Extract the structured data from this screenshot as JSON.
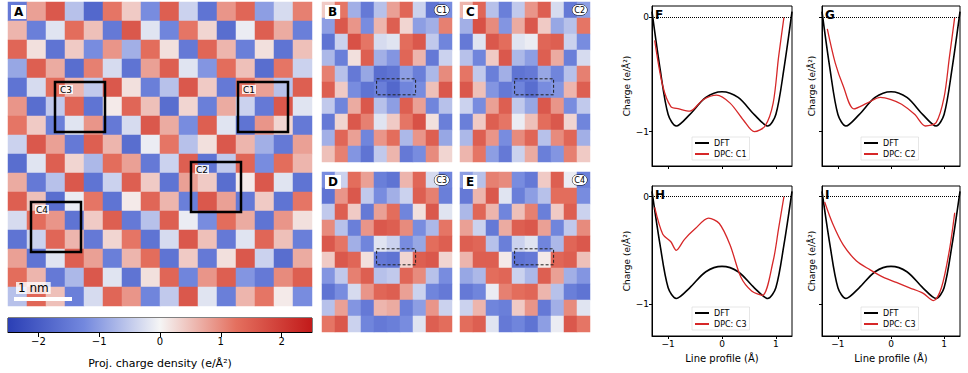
{
  "chart_data": [
    {
      "type": "heatmap",
      "panel": "A",
      "boxes": [
        "C3",
        "C1",
        "C2",
        "C4"
      ],
      "scale_bar": "1 nm",
      "colorbar": {
        "label": "Proj. charge density (e/Å²)",
        "range": [
          -2.5,
          2.5
        ],
        "ticks": [
          {
            "value": -2,
            "label": "−2"
          },
          {
            "value": -1,
            "label": "−1"
          },
          0,
          1,
          2
        ]
      },
      "cells": [
        [
          -1.5,
          0.8,
          1.6,
          -0.6,
          -1.8,
          1.2,
          0.4,
          -1.2,
          1.5,
          -0.4,
          -1.6,
          0.9,
          1.4,
          -1.0,
          -0.3,
          1.1
        ],
        [
          0.6,
          -1.4,
          -0.2,
          1.3,
          0.5,
          -1.5,
          1.6,
          -0.2,
          -1.3,
          1.2,
          0.3,
          -1.7,
          -0.1,
          1.5,
          0.7,
          -1.4
        ],
        [
          1.4,
          0.2,
          -1.6,
          0.4,
          -1.2,
          0.9,
          -0.8,
          1.3,
          0.2,
          -1.5,
          1.4,
          0.6,
          -1.4,
          0.2,
          -1.6,
          0.5
        ],
        [
          -0.9,
          1.5,
          0.7,
          -1.7,
          1.1,
          -0.3,
          -1.6,
          0.8,
          1.5,
          -0.2,
          -1.1,
          1.3,
          0.5,
          -1.7,
          1.2,
          -0.4
        ],
        [
          -1.6,
          -0.3,
          1.3,
          0.6,
          -0.5,
          1.6,
          0.2,
          -1.4,
          -0.6,
          1.6,
          0.4,
          -1.5,
          1.2,
          0.8,
          -0.6,
          1.5
        ],
        [
          0.9,
          -1.7,
          -0.5,
          1.4,
          -1.6,
          0.1,
          1.4,
          0.5,
          -1.7,
          0.3,
          -1.4,
          0.7,
          -0.4,
          -1.5,
          1.6,
          -0.2
        ],
        [
          1.2,
          0.4,
          -1.4,
          -0.2,
          0.9,
          -1.5,
          -0.3,
          1.6,
          0.7,
          -1.2,
          1.5,
          -0.2,
          -1.6,
          0.9,
          0.3,
          -1.5
        ],
        [
          -0.4,
          1.6,
          0.8,
          -1.5,
          1.5,
          0.6,
          -1.7,
          -0.1,
          1.2,
          -0.6,
          0.2,
          1.6,
          0.6,
          -0.8,
          -1.5,
          0.8
        ],
        [
          -1.7,
          -0.2,
          1.5,
          0.3,
          -0.7,
          1.3,
          0.8,
          -1.5,
          -0.4,
          1.5,
          -1.6,
          -0.5,
          1.4,
          -1.2,
          1.3,
          0.6
        ],
        [
          0.7,
          -1.5,
          -0.6,
          1.6,
          -1.6,
          -0.4,
          1.5,
          0.4,
          -1.6,
          0.8,
          0.4,
          -1.7,
          0.1,
          1.6,
          -0.2,
          -1.6
        ],
        [
          1.5,
          0.5,
          -1.7,
          -0.1,
          1.2,
          -1.6,
          0.1,
          1.4,
          0.6,
          -1.4,
          1.6,
          0.8,
          -1.5,
          0.4,
          -1.6,
          1.2
        ],
        [
          -0.3,
          1.3,
          0.9,
          -1.6,
          0.4,
          1.5,
          -1.5,
          -0.6,
          1.5,
          -0.1,
          -1.2,
          1.3,
          0.7,
          -1.6,
          0.9,
          0.2
        ],
        [
          -1.6,
          -0.4,
          1.4,
          0.6,
          -1.5,
          0.3,
          1.2,
          -1.6,
          -0.3,
          1.6,
          0.5,
          -1.5,
          -0.2,
          1.4,
          0.5,
          -1.4
        ],
        [
          0.8,
          -1.6,
          -0.2,
          1.5,
          0.8,
          -1.4,
          0.6,
          1.3,
          -1.6,
          0.4,
          -1.5,
          0.2,
          1.6,
          -0.4,
          -1.7,
          0.7
        ],
        [
          1.3,
          0.6,
          -1.5,
          -0.7,
          1.6,
          -0.2,
          -1.6,
          0.2,
          1.4,
          -1.3,
          0.9,
          1.5,
          -1.1,
          -1.5,
          1.0,
          1.5
        ],
        [
          -0.6,
          1.4,
          0.5,
          -1.4,
          -0.3,
          1.4,
          0.9,
          -1.3,
          -0.5,
          1.6,
          -0.2,
          -1.4,
          0.6,
          1.2,
          0.1,
          -1.2
        ]
      ]
    },
    {
      "type": "heatmap",
      "panel": "B",
      "tag": "C1",
      "cells": [
        [
          0.4,
          1.2,
          -0.8,
          -1.5,
          -0.6,
          0.8,
          1.4,
          -0.4,
          -1.6,
          -1.2
        ],
        [
          -1.0,
          1.6,
          0.9,
          -1.2,
          0.6,
          1.5,
          0.3,
          -1.0,
          -0.8,
          1.1
        ],
        [
          -1.6,
          -0.4,
          1.7,
          1.2,
          -0.3,
          -0.2,
          1.3,
          1.6,
          -0.5,
          -1.3
        ],
        [
          -0.7,
          -1.4,
          0.2,
          1.5,
          -0.8,
          -1.1,
          1.4,
          0.6,
          -1.5,
          -0.4
        ],
        [
          1.1,
          -0.6,
          -1.5,
          -0.9,
          -1.7,
          -1.6,
          -1.0,
          -1.4,
          -0.7,
          1.0
        ],
        [
          1.5,
          0.4,
          -1.2,
          -1.6,
          -1.4,
          -1.8,
          -1.3,
          -1.2,
          0.5,
          1.6
        ],
        [
          -0.5,
          -1.3,
          0.7,
          1.6,
          -0.6,
          -1.0,
          1.5,
          0.8,
          -1.3,
          -0.6
        ],
        [
          -1.5,
          0.3,
          1.6,
          1.1,
          -0.2,
          0.4,
          1.2,
          1.7,
          0.2,
          -1.4
        ],
        [
          -0.8,
          1.4,
          0.8,
          -1.3,
          0.9,
          1.3,
          -0.7,
          0.9,
          1.5,
          -0.9
        ],
        [
          0.5,
          1.1,
          -1.1,
          -1.6,
          -0.5,
          0.6,
          -1.5,
          -1.2,
          1.0,
          0.3
        ]
      ]
    },
    {
      "type": "heatmap",
      "panel": "C",
      "tag": "C2",
      "cells": [
        [
          0.6,
          1.4,
          -0.6,
          -1.4,
          -0.5,
          0.9,
          1.5,
          -0.3,
          -1.5,
          -1.0
        ],
        [
          -0.8,
          1.7,
          1.0,
          -1.1,
          0.7,
          1.6,
          0.4,
          -0.9,
          -0.6,
          1.2
        ],
        [
          -1.5,
          -0.2,
          1.6,
          1.3,
          -0.2,
          -0.1,
          1.4,
          1.5,
          -0.4,
          -1.2
        ],
        [
          -0.6,
          -1.3,
          0.4,
          1.6,
          -0.7,
          -1.0,
          1.5,
          0.7,
          -1.4,
          -0.3
        ],
        [
          1.2,
          -0.5,
          -1.4,
          -0.8,
          -1.6,
          -1.5,
          -0.9,
          -1.3,
          -0.6,
          1.1
        ],
        [
          1.6,
          0.5,
          -1.1,
          -1.5,
          -1.3,
          -1.7,
          -1.2,
          -1.1,
          0.6,
          1.5
        ],
        [
          -0.4,
          -1.2,
          0.8,
          1.5,
          -0.5,
          -0.9,
          1.6,
          0.9,
          -1.2,
          -0.5
        ],
        [
          -1.4,
          0.4,
          1.5,
          1.2,
          -0.1,
          0.5,
          1.3,
          1.6,
          0.3,
          -1.3
        ],
        [
          -0.7,
          1.5,
          0.9,
          -1.2,
          1.0,
          1.4,
          -0.6,
          1.0,
          1.4,
          -0.8
        ],
        [
          0.6,
          1.2,
          -1.0,
          -1.5,
          -0.4,
          0.7,
          -1.4,
          -1.1,
          1.1,
          0.4
        ]
      ]
    },
    {
      "type": "heatmap",
      "panel": "D",
      "tag": "C3",
      "cells": [
        [
          -1.2,
          -0.4,
          1.3,
          0.8,
          -1.4,
          -1.6,
          0.6,
          1.4,
          -0.3,
          -1.3
        ],
        [
          -1.6,
          0.9,
          1.6,
          -0.5,
          -1.2,
          -0.8,
          -0.4,
          1.5,
          1.1,
          -1.4
        ],
        [
          -0.5,
          1.5,
          0.4,
          -1.5,
          0.8,
          1.3,
          -1.3,
          0.2,
          1.6,
          -0.2
        ],
        [
          1.0,
          -0.6,
          -1.4,
          0.9,
          1.6,
          1.5,
          1.0,
          -1.2,
          -0.7,
          1.2
        ],
        [
          1.6,
          1.2,
          -0.8,
          -1.3,
          -0.2,
          -0.4,
          -1.2,
          -0.9,
          1.3,
          1.5
        ],
        [
          0.4,
          1.6,
          1.4,
          0.2,
          -1.5,
          -1.6,
          0.3,
          1.5,
          1.6,
          0.3
        ],
        [
          -1.1,
          -0.5,
          1.1,
          1.5,
          -0.6,
          -0.5,
          1.4,
          1.0,
          -0.6,
          -1.2
        ],
        [
          -1.6,
          -1.2,
          -0.3,
          0.9,
          1.4,
          1.5,
          0.8,
          -0.4,
          -1.3,
          -1.5
        ],
        [
          -0.6,
          0.8,
          -1.1,
          -1.5,
          0.6,
          0.7,
          -1.4,
          -1.0,
          0.9,
          -0.4
        ],
        [
          1.2,
          1.6,
          -0.4,
          -1.3,
          -1.5,
          -1.4,
          -1.2,
          -0.2,
          1.5,
          1.3
        ]
      ]
    },
    {
      "type": "heatmap",
      "panel": "E",
      "tag": "C4",
      "cells": [
        [
          -1.0,
          -0.6,
          1.1,
          1.0,
          -1.2,
          -1.5,
          0.4,
          1.5,
          -0.1,
          -1.4
        ],
        [
          -1.5,
          0.6,
          1.6,
          -0.2,
          -1.4,
          -1.0,
          -0.6,
          1.3,
          1.3,
          -1.2
        ],
        [
          -0.7,
          1.4,
          0.6,
          -1.3,
          0.5,
          1.1,
          -1.4,
          0.4,
          1.5,
          -0.4
        ],
        [
          0.8,
          -0.4,
          -1.5,
          0.7,
          1.5,
          1.6,
          0.8,
          -1.3,
          -0.5,
          1.0
        ],
        [
          1.5,
          1.4,
          -0.6,
          -1.4,
          -0.4,
          -0.2,
          -1.3,
          -0.7,
          1.4,
          1.6
        ],
        [
          0.6,
          1.5,
          1.5,
          0.1,
          -1.6,
          -1.5,
          0.1,
          1.4,
          1.5,
          0.5
        ],
        [
          -0.9,
          -0.7,
          1.3,
          1.4,
          -0.4,
          -0.7,
          1.5,
          0.8,
          -0.8,
          -1.1
        ],
        [
          -1.5,
          -1.3,
          -0.1,
          1.1,
          1.3,
          1.4,
          0.6,
          -0.6,
          -1.4,
          -1.6
        ],
        [
          -0.4,
          0.6,
          -1.3,
          -1.4,
          0.4,
          0.9,
          -1.5,
          -0.8,
          1.0,
          -0.2
        ],
        [
          1.3,
          1.5,
          -0.2,
          -1.5,
          -1.3,
          -1.6,
          -1.0,
          -0.1,
          1.6,
          1.2
        ]
      ]
    },
    {
      "type": "line",
      "panel": "F",
      "ylabel": "Charge (e/Å²)",
      "xlim": [
        -1.3,
        1.3
      ],
      "xticks": [
        {
          "value": -1,
          "label": "−1"
        },
        0,
        1
      ],
      "ylim": [
        -1.3,
        0.1
      ],
      "yticks": [
        {
          "value": -1,
          "label": "−1"
        },
        0
      ],
      "hline": 0,
      "legend": "bottom",
      "tick_labels": "y",
      "series": [
        {
          "name": "DFT",
          "color": "#000000",
          "x": [
            -1.3,
            -1.15,
            -1.0,
            -0.85,
            -0.6,
            -0.3,
            0,
            0.3,
            0.6,
            0.85,
            1.0,
            1.15,
            1.3
          ],
          "values": [
            0.05,
            -0.45,
            -0.85,
            -0.95,
            -0.85,
            -0.7,
            -0.65,
            -0.7,
            -0.85,
            -0.95,
            -0.85,
            -0.45,
            0.05
          ]
        },
        {
          "name": "DPC: C1",
          "color": "#d62728",
          "x": [
            -1.25,
            -1.1,
            -0.95,
            -0.8,
            -0.6,
            -0.35,
            -0.1,
            0.15,
            0.4,
            0.6,
            0.8,
            0.95,
            1.05,
            1.15
          ],
          "values": [
            -0.2,
            -0.6,
            -0.78,
            -0.8,
            -0.82,
            -0.72,
            -0.68,
            -0.75,
            -0.9,
            -1.0,
            -0.95,
            -0.75,
            -0.35,
            0.0
          ]
        }
      ]
    },
    {
      "type": "line",
      "panel": "G",
      "ylabel": "Charge (e/Å²)",
      "xlim": [
        -1.3,
        1.3
      ],
      "xticks": [
        {
          "value": -1,
          "label": "−1"
        },
        0,
        1
      ],
      "ylim": [
        -1.3,
        0.1
      ],
      "yticks": [
        {
          "value": -1,
          "label": "−1"
        },
        0
      ],
      "hline": 0,
      "legend": "bottom",
      "tick_labels": false,
      "series": [
        {
          "name": "DFT",
          "color": "#000000",
          "x": [
            -1.3,
            -1.15,
            -1.0,
            -0.85,
            -0.6,
            -0.3,
            0,
            0.3,
            0.6,
            0.85,
            1.0,
            1.15,
            1.3
          ],
          "values": [
            0.05,
            -0.45,
            -0.85,
            -0.95,
            -0.85,
            -0.7,
            -0.65,
            -0.7,
            -0.85,
            -0.95,
            -0.85,
            -0.45,
            0.05
          ]
        },
        {
          "name": "DPC: C2",
          "color": "#d62728",
          "x": [
            -1.2,
            -1.05,
            -0.9,
            -0.7,
            -0.45,
            -0.2,
            0,
            0.2,
            0.45,
            0.65,
            0.85,
            1.0,
            1.1,
            1.2
          ],
          "values": [
            -0.1,
            -0.4,
            -0.6,
            -0.8,
            -0.75,
            -0.7,
            -0.72,
            -0.76,
            -0.85,
            -0.95,
            -0.92,
            -0.7,
            -0.35,
            0.0
          ]
        }
      ]
    },
    {
      "type": "line",
      "panel": "H",
      "xlabel": "Line profile (Å)",
      "ylabel": "Charge (e/Å²)",
      "xlim": [
        -1.3,
        1.3
      ],
      "xticks": [
        {
          "value": -1,
          "label": "−1"
        },
        0,
        1
      ],
      "ylim": [
        -1.3,
        0.1
      ],
      "yticks": [
        {
          "value": -1,
          "label": "−1"
        },
        0
      ],
      "hline": 0,
      "legend": "bottom",
      "tick_labels": true,
      "series": [
        {
          "name": "DFT",
          "color": "#000000",
          "x": [
            -1.3,
            -1.15,
            -1.0,
            -0.85,
            -0.6,
            -0.3,
            0,
            0.3,
            0.6,
            0.85,
            1.0,
            1.15,
            1.3
          ],
          "values": [
            0.05,
            -0.45,
            -0.85,
            -0.95,
            -0.85,
            -0.7,
            -0.65,
            -0.7,
            -0.85,
            -0.95,
            -0.85,
            -0.45,
            0.05
          ]
        },
        {
          "name": "DPC: C3",
          "color": "#d62728",
          "x": [
            -1.25,
            -1.1,
            -0.95,
            -0.85,
            -0.7,
            -0.5,
            -0.25,
            -0.05,
            0.15,
            0.35,
            0.55,
            0.75,
            0.95,
            1.05,
            1.15
          ],
          "values": [
            -0.1,
            -0.35,
            -0.42,
            -0.5,
            -0.4,
            -0.3,
            -0.2,
            -0.25,
            -0.45,
            -0.75,
            -0.88,
            -0.92,
            -0.6,
            -0.3,
            0.0
          ]
        }
      ]
    },
    {
      "type": "line",
      "panel": "I",
      "xlabel": "Line profile (Å)",
      "ylabel": "Charge (e/Å²)",
      "xlim": [
        -1.3,
        1.3
      ],
      "xticks": [
        {
          "value": -1,
          "label": "−1"
        },
        0,
        1
      ],
      "ylim": [
        -1.3,
        0.1
      ],
      "yticks": [
        {
          "value": -1,
          "label": "−1"
        },
        0
      ],
      "hline": 0,
      "legend": "bottom",
      "tick_labels": "x",
      "series": [
        {
          "name": "DFT",
          "color": "#000000",
          "x": [
            -1.3,
            -1.15,
            -1.0,
            -0.85,
            -0.6,
            -0.3,
            0,
            0.3,
            0.6,
            0.85,
            1.0,
            1.15,
            1.3
          ],
          "values": [
            0.05,
            -0.45,
            -0.85,
            -0.95,
            -0.85,
            -0.7,
            -0.65,
            -0.7,
            -0.85,
            -0.95,
            -0.85,
            -0.45,
            0.05
          ]
        },
        {
          "name": "DPC: C3",
          "color": "#d62728",
          "x": [
            -1.25,
            -1.1,
            -0.9,
            -0.65,
            -0.4,
            -0.15,
            0.1,
            0.35,
            0.6,
            0.8,
            0.95,
            1.1,
            1.2
          ],
          "values": [
            -0.05,
            -0.25,
            -0.45,
            -0.6,
            -0.68,
            -0.75,
            -0.8,
            -0.85,
            -0.9,
            -0.97,
            -0.85,
            -0.5,
            -0.15
          ]
        }
      ]
    }
  ]
}
